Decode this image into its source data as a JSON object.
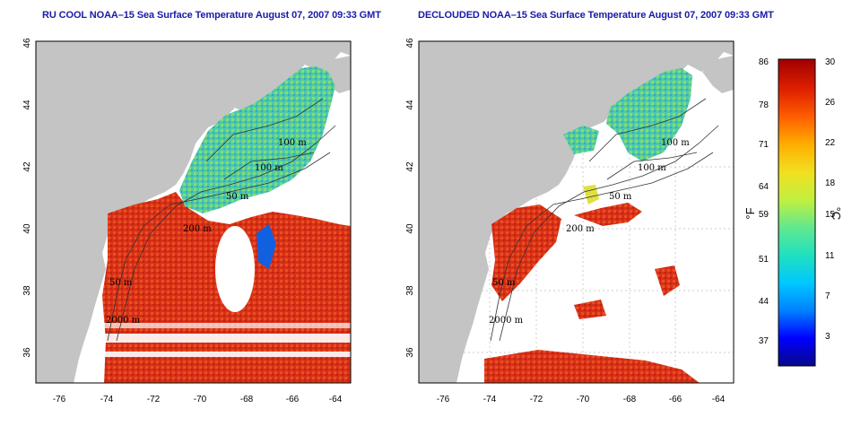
{
  "left_panel": {
    "title": "RU COOL NOAA–15 Sea Surface Temperature August 07, 2007 09:33 GMT",
    "contour_labels": [
      "100 m",
      "100 m",
      "50 m",
      "200 m",
      "50 m",
      "2000 m"
    ]
  },
  "right_panel": {
    "title": "DECLOUDED NOAA–15 Sea Surface Temperature August 07, 2007 09:33 GMT",
    "contour_labels": [
      "100 m",
      "100 m",
      "50 m",
      "200 m",
      "50 m",
      "2000 m"
    ]
  },
  "axes": {
    "lon_ticks": [
      "-76",
      "-74",
      "-72",
      "-70",
      "-68",
      "-66",
      "-64"
    ],
    "lat_ticks": [
      "46",
      "44",
      "42",
      "40",
      "38",
      "36"
    ]
  },
  "colorbar": {
    "fahrenheit_ticks": [
      "86",
      "78",
      "71",
      "64",
      "59",
      "51",
      "44",
      "37"
    ],
    "celsius_ticks": [
      "30",
      "26",
      "22",
      "18",
      "15",
      "11",
      "7",
      "3"
    ],
    "fahrenheit_unit": "°F",
    "celsius_unit": "°C",
    "gradient": [
      "#08088a",
      "#0000ff",
      "#0080ff",
      "#00c8ff",
      "#20e0c0",
      "#60e890",
      "#c0f040",
      "#f0e020",
      "#ffb000",
      "#ff6000",
      "#e02000",
      "#a00000"
    ]
  },
  "colors": {
    "land": "#c4c4c4",
    "ocean_blank": "#ffffff",
    "warm_sst": "#d83018",
    "cool_sst": "#50c8a8",
    "title": "#1a1aa8"
  }
}
